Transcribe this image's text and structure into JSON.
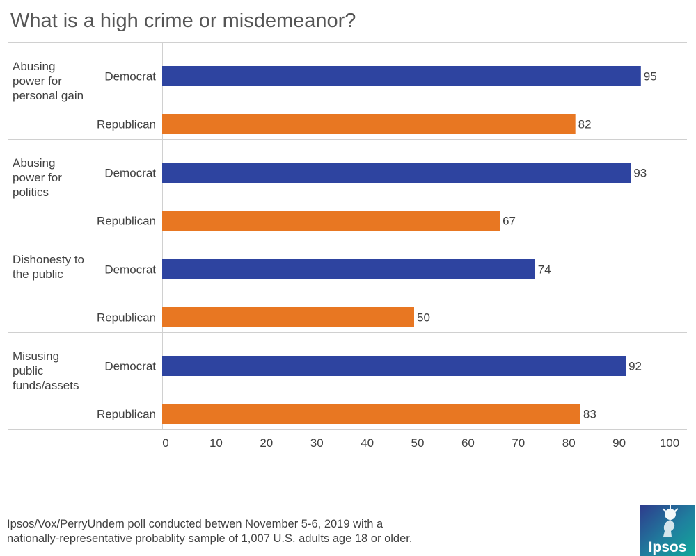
{
  "chart_data": {
    "type": "bar",
    "orientation": "horizontal",
    "title": "What is a high crime or misdemeanor?",
    "categories": [
      "Abusing power for personal gain",
      "Abusing power for politics",
      "Dishonesty to the public",
      "Misusing public funds/assets"
    ],
    "series": [
      {
        "name": "Democrat",
        "color": "#2E44A0",
        "values": [
          95,
          93,
          74,
          92
        ]
      },
      {
        "name": "Republican",
        "color": "#E87722",
        "values": [
          82,
          67,
          50,
          83
        ]
      }
    ],
    "xlim": [
      0,
      100
    ],
    "xticks": [
      0,
      10,
      20,
      30,
      40,
      50,
      60,
      70,
      80,
      90,
      100
    ],
    "data_labels": true,
    "grid": false
  },
  "footnote": {
    "line1": "Ipsos/Vox/PerryUndem poll conducted betwen November 5-6, 2019 with a",
    "line2": "nationally-representative probablity sample of 1,007 U.S. adults age 18 or older."
  },
  "logo": {
    "text": "Ipsos",
    "icon": "ipsos-logo-icon"
  }
}
